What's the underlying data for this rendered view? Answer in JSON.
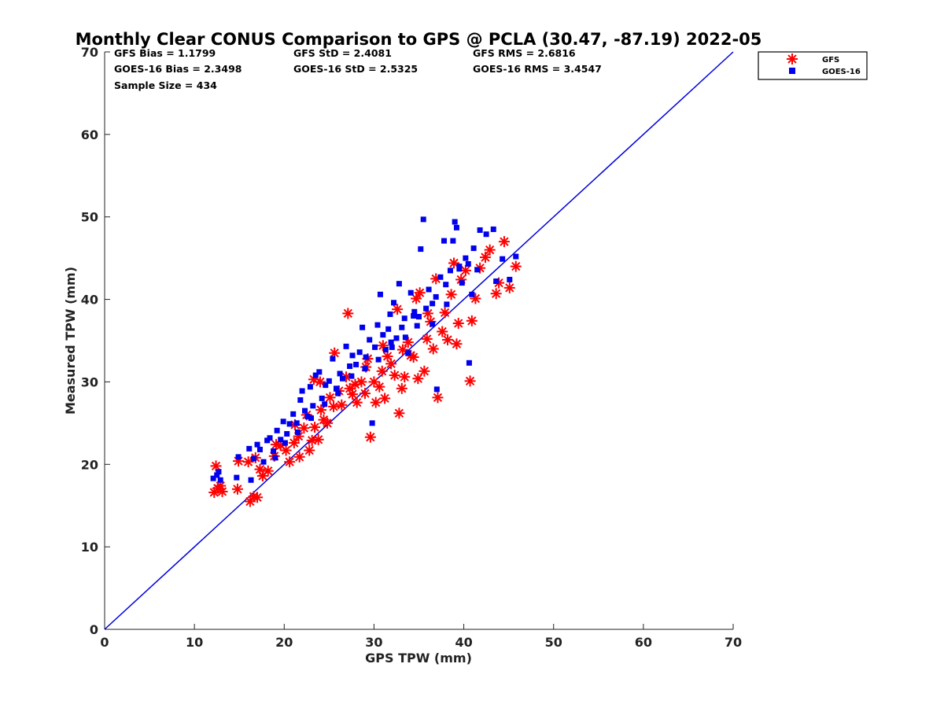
{
  "chart_data": {
    "type": "scatter",
    "title": "Monthly Clear CONUS Comparison to GPS @ PCLA (30.47, -87.19) 2022-05",
    "xlabel": "GPS TPW (mm)",
    "ylabel": "Measured TPW (mm)",
    "xlim": [
      0,
      70
    ],
    "ylim": [
      0,
      70
    ],
    "xticks": [
      "0",
      "10",
      "20",
      "30",
      "40",
      "50",
      "60",
      "70"
    ],
    "yticks": [
      "0",
      "10",
      "20",
      "30",
      "40",
      "50",
      "60",
      "70"
    ],
    "grid": false,
    "legend_position": "top-right, outside plot area",
    "stats": [
      {
        "text": "GFS Bias = 1.1799"
      },
      {
        "text": "GFS StD = 2.4081"
      },
      {
        "text": "GFS RMS = 2.6816"
      },
      {
        "text": "GOES-16 Bias = 2.3498"
      },
      {
        "text": "GOES-16 StD = 2.5325"
      },
      {
        "text": "GOES-16 RMS = 3.4547"
      },
      {
        "text": "Sample Size = 434"
      }
    ],
    "reference_line": {
      "x": [
        0,
        70
      ],
      "y": [
        0,
        70
      ],
      "color": "#0000dd"
    },
    "series": [
      {
        "name": "GFS",
        "marker": "asterisk",
        "color": "#ff0000",
        "points": [
          [
            12.2,
            16.6
          ],
          [
            12.6,
            17.1
          ],
          [
            12.9,
            17.4
          ],
          [
            13.1,
            16.7
          ],
          [
            12.4,
            19.8
          ],
          [
            14.8,
            17.0
          ],
          [
            14.9,
            20.4
          ],
          [
            16.2,
            15.5
          ],
          [
            16.6,
            16.1
          ],
          [
            17.0,
            16.0
          ],
          [
            16.0,
            20.3
          ],
          [
            16.8,
            20.8
          ],
          [
            17.3,
            19.4
          ],
          [
            17.6,
            18.6
          ],
          [
            18.2,
            19.2
          ],
          [
            18.9,
            21.0
          ],
          [
            19.1,
            22.4
          ],
          [
            19.6,
            22.3
          ],
          [
            20.2,
            21.7
          ],
          [
            20.6,
            20.3
          ],
          [
            21.1,
            22.6
          ],
          [
            21.7,
            20.9
          ],
          [
            21.6,
            23.4
          ],
          [
            22.2,
            24.4
          ],
          [
            22.8,
            21.7
          ],
          [
            23.1,
            22.9
          ],
          [
            23.4,
            24.5
          ],
          [
            23.8,
            23.0
          ],
          [
            24.1,
            26.6
          ],
          [
            24.4,
            25.4
          ],
          [
            23.3,
            30.3
          ],
          [
            24.0,
            30.0
          ],
          [
            24.8,
            25.0
          ],
          [
            25.5,
            27.0
          ],
          [
            25.6,
            33.5
          ],
          [
            26.1,
            28.9
          ],
          [
            26.4,
            27.2
          ],
          [
            26.9,
            30.6
          ],
          [
            27.1,
            38.3
          ],
          [
            27.6,
            28.5
          ],
          [
            27.9,
            29.7
          ],
          [
            28.1,
            27.5
          ],
          [
            28.6,
            30.0
          ],
          [
            29.0,
            28.6
          ],
          [
            29.3,
            32.8
          ],
          [
            29.6,
            23.3
          ],
          [
            30.0,
            30.0
          ],
          [
            30.2,
            27.5
          ],
          [
            30.6,
            29.4
          ],
          [
            30.9,
            31.3
          ],
          [
            31.2,
            28.0
          ],
          [
            31.5,
            33.1
          ],
          [
            31.9,
            32.2
          ],
          [
            32.3,
            30.8
          ],
          [
            32.6,
            38.8
          ],
          [
            32.8,
            26.2
          ],
          [
            33.1,
            29.2
          ],
          [
            33.4,
            30.6
          ],
          [
            33.8,
            34.8
          ],
          [
            34.1,
            33.2
          ],
          [
            34.4,
            33.0
          ],
          [
            34.9,
            30.4
          ],
          [
            35.1,
            40.8
          ],
          [
            35.6,
            31.3
          ],
          [
            35.9,
            35.2
          ],
          [
            36.3,
            37.3
          ],
          [
            36.6,
            34.0
          ],
          [
            36.9,
            42.5
          ],
          [
            37.1,
            28.1
          ],
          [
            37.6,
            36.1
          ],
          [
            37.9,
            38.4
          ],
          [
            38.2,
            35.1
          ],
          [
            38.6,
            40.6
          ],
          [
            38.9,
            44.4
          ],
          [
            39.2,
            34.6
          ],
          [
            39.4,
            37.1
          ],
          [
            39.7,
            42.4
          ],
          [
            40.2,
            43.5
          ],
          [
            40.7,
            30.1
          ],
          [
            40.9,
            37.4
          ],
          [
            41.3,
            40.1
          ],
          [
            41.8,
            43.8
          ],
          [
            42.4,
            45.1
          ],
          [
            42.9,
            46.0
          ],
          [
            43.6,
            40.7
          ],
          [
            43.9,
            42.0
          ],
          [
            44.5,
            47.0
          ],
          [
            45.1,
            41.4
          ],
          [
            45.8,
            44.0
          ],
          [
            21.2,
            24.8
          ],
          [
            22.5,
            26.0
          ],
          [
            25.1,
            28.1
          ],
          [
            27.3,
            29.2
          ],
          [
            29.1,
            31.8
          ],
          [
            31.0,
            34.4
          ],
          [
            33.2,
            33.9
          ],
          [
            36.0,
            38.3
          ],
          [
            34.7,
            40.1
          ]
        ]
      },
      {
        "name": "GOES-16",
        "marker": "square",
        "color": "#0000ee",
        "points": [
          [
            12.1,
            18.3
          ],
          [
            12.5,
            18.7
          ],
          [
            12.9,
            18.1
          ],
          [
            12.7,
            19.1
          ],
          [
            14.7,
            18.4
          ],
          [
            14.9,
            20.9
          ],
          [
            16.3,
            18.1
          ],
          [
            16.1,
            21.9
          ],
          [
            16.6,
            20.7
          ],
          [
            17.0,
            22.4
          ],
          [
            17.3,
            21.8
          ],
          [
            17.7,
            20.3
          ],
          [
            18.1,
            22.9
          ],
          [
            18.4,
            23.2
          ],
          [
            18.8,
            21.6
          ],
          [
            19.2,
            24.1
          ],
          [
            19.6,
            23.0
          ],
          [
            19.9,
            25.2
          ],
          [
            20.3,
            23.7
          ],
          [
            20.6,
            24.9
          ],
          [
            21.0,
            26.1
          ],
          [
            21.4,
            25.0
          ],
          [
            21.8,
            27.8
          ],
          [
            22.0,
            28.9
          ],
          [
            22.3,
            26.5
          ],
          [
            22.6,
            25.8
          ],
          [
            22.9,
            29.4
          ],
          [
            23.2,
            27.1
          ],
          [
            23.5,
            30.8
          ],
          [
            23.9,
            31.2
          ],
          [
            24.2,
            28.0
          ],
          [
            24.6,
            29.6
          ],
          [
            25.0,
            30.1
          ],
          [
            25.4,
            32.8
          ],
          [
            25.8,
            29.2
          ],
          [
            26.2,
            31.0
          ],
          [
            26.5,
            30.4
          ],
          [
            26.9,
            34.3
          ],
          [
            27.3,
            31.9
          ],
          [
            27.6,
            33.2
          ],
          [
            28.0,
            32.1
          ],
          [
            28.4,
            33.6
          ],
          [
            28.7,
            36.6
          ],
          [
            29.1,
            33.0
          ],
          [
            29.5,
            35.1
          ],
          [
            29.8,
            25.0
          ],
          [
            30.1,
            34.2
          ],
          [
            30.4,
            36.9
          ],
          [
            30.7,
            40.6
          ],
          [
            31.0,
            35.7
          ],
          [
            31.3,
            33.9
          ],
          [
            31.6,
            36.4
          ],
          [
            31.9,
            34.8
          ],
          [
            32.2,
            39.6
          ],
          [
            32.5,
            35.3
          ],
          [
            32.8,
            41.9
          ],
          [
            33.1,
            36.6
          ],
          [
            33.4,
            37.7
          ],
          [
            33.8,
            33.5
          ],
          [
            34.1,
            40.8
          ],
          [
            34.4,
            38.0
          ],
          [
            34.8,
            36.8
          ],
          [
            35.2,
            46.1
          ],
          [
            35.5,
            49.7
          ],
          [
            35.8,
            38.9
          ],
          [
            36.1,
            41.2
          ],
          [
            36.5,
            37.0
          ],
          [
            36.9,
            40.3
          ],
          [
            37.0,
            29.1
          ],
          [
            37.4,
            42.7
          ],
          [
            37.8,
            47.1
          ],
          [
            38.1,
            39.4
          ],
          [
            38.5,
            43.5
          ],
          [
            38.8,
            47.1
          ],
          [
            39.0,
            49.4
          ],
          [
            39.2,
            48.7
          ],
          [
            39.5,
            44.0
          ],
          [
            39.8,
            42.0
          ],
          [
            40.2,
            45.0
          ],
          [
            40.6,
            32.3
          ],
          [
            40.9,
            40.6
          ],
          [
            41.1,
            46.2
          ],
          [
            41.5,
            43.6
          ],
          [
            41.8,
            48.4
          ],
          [
            42.5,
            47.9
          ],
          [
            43.3,
            48.5
          ],
          [
            43.6,
            42.2
          ],
          [
            44.3,
            44.9
          ],
          [
            45.1,
            42.4
          ],
          [
            45.8,
            45.2
          ],
          [
            19.0,
            20.8
          ],
          [
            20.1,
            22.6
          ],
          [
            21.5,
            23.9
          ],
          [
            23.0,
            25.6
          ],
          [
            24.5,
            27.3
          ],
          [
            26.0,
            28.6
          ],
          [
            27.5,
            30.7
          ],
          [
            29.0,
            31.6
          ],
          [
            30.5,
            32.7
          ],
          [
            32.0,
            34.2
          ],
          [
            33.5,
            35.4
          ],
          [
            35.0,
            37.9
          ],
          [
            36.5,
            39.5
          ],
          [
            38.0,
            41.8
          ],
          [
            39.5,
            43.7
          ],
          [
            40.5,
            44.3
          ],
          [
            34.5,
            38.5
          ],
          [
            31.8,
            38.2
          ]
        ]
      }
    ]
  }
}
